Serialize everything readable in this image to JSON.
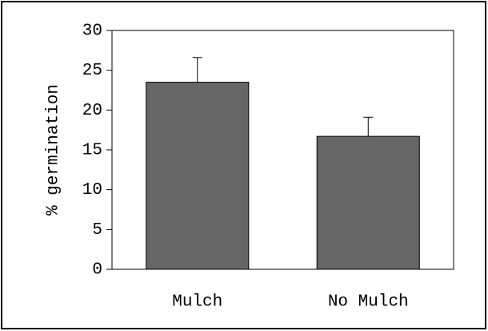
{
  "chart_data": {
    "type": "bar",
    "y_label": "% germination",
    "categories": [
      "Mulch",
      "No Mulch"
    ],
    "values": [
      23.5,
      16.7
    ],
    "errors": [
      3.1,
      2.4
    ],
    "color": "#666666",
    "ylim": [
      0,
      30
    ],
    "yticks": [
      0,
      5,
      10,
      15,
      20,
      25,
      30
    ],
    "grid": false
  }
}
